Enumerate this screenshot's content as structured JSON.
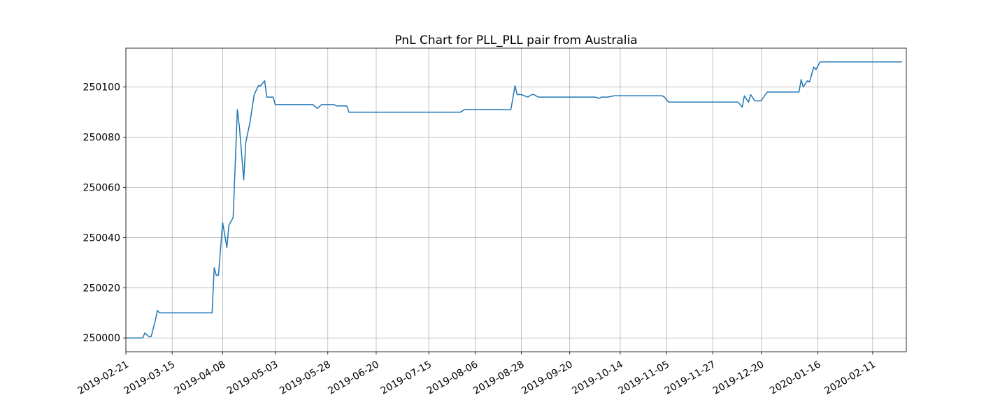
{
  "chart_data": {
    "type": "line",
    "title": "PnL Chart for PLL_PLL pair from Australia",
    "xlabel": "",
    "ylabel": "",
    "x_type": "date",
    "xlim": [
      "2019-02-21",
      "2020-02-27"
    ],
    "ylim": [
      249994.5,
      250115.5
    ],
    "x_ticks": [
      "2019-02-21",
      "2019-03-15",
      "2019-04-08",
      "2019-05-03",
      "2019-05-28",
      "2019-06-20",
      "2019-07-15",
      "2019-08-06",
      "2019-08-28",
      "2019-09-20",
      "2019-10-14",
      "2019-11-05",
      "2019-11-27",
      "2019-12-20",
      "2020-01-16",
      "2020-02-11"
    ],
    "y_ticks": [
      250000,
      250020,
      250040,
      250060,
      250080,
      250100
    ],
    "grid": true,
    "line_color": "#1f77b4",
    "series": [
      {
        "points": [
          [
            "2019-02-21",
            250000
          ],
          [
            "2019-03-01",
            250000
          ],
          [
            "2019-03-02",
            250002
          ],
          [
            "2019-03-04",
            250000.5
          ],
          [
            "2019-03-05",
            250000.5
          ],
          [
            "2019-03-07",
            250007
          ],
          [
            "2019-03-08",
            250011
          ],
          [
            "2019-03-09",
            250010
          ],
          [
            "2019-04-03",
            250010
          ],
          [
            "2019-04-04",
            250028
          ],
          [
            "2019-04-05",
            250025
          ],
          [
            "2019-04-06",
            250025
          ],
          [
            "2019-04-08",
            250046
          ],
          [
            "2019-04-10",
            250036
          ],
          [
            "2019-04-11",
            250045
          ],
          [
            "2019-04-13",
            250048
          ],
          [
            "2019-04-15",
            250091
          ],
          [
            "2019-04-16",
            250084
          ],
          [
            "2019-04-18",
            250063
          ],
          [
            "2019-04-19",
            250078
          ],
          [
            "2019-04-21",
            250086
          ],
          [
            "2019-04-23",
            250097
          ],
          [
            "2019-04-25",
            250100.5
          ],
          [
            "2019-04-26",
            250100.5
          ],
          [
            "2019-04-28",
            250102.5
          ],
          [
            "2019-04-29",
            250096
          ],
          [
            "2019-05-02",
            250096
          ],
          [
            "2019-05-03",
            250093
          ],
          [
            "2019-05-21",
            250093
          ],
          [
            "2019-05-23",
            250091.5
          ],
          [
            "2019-05-25",
            250093
          ],
          [
            "2019-05-31",
            250093
          ],
          [
            "2019-06-01",
            250092.5
          ],
          [
            "2019-06-06",
            250092.5
          ],
          [
            "2019-06-07",
            250090
          ],
          [
            "2019-07-30",
            250090
          ],
          [
            "2019-08-01",
            250091
          ],
          [
            "2019-08-23",
            250091
          ],
          [
            "2019-08-25",
            250100.5
          ],
          [
            "2019-08-26",
            250097
          ],
          [
            "2019-08-28",
            250097
          ],
          [
            "2019-08-31",
            250096
          ],
          [
            "2019-09-02",
            250097
          ],
          [
            "2019-09-03",
            250097
          ],
          [
            "2019-09-05",
            250096
          ],
          [
            "2019-10-02",
            250096
          ],
          [
            "2019-10-04",
            250095.5
          ],
          [
            "2019-10-05",
            250096
          ],
          [
            "2019-10-08",
            250096
          ],
          [
            "2019-10-11",
            250096.5
          ],
          [
            "2019-11-03",
            250096.5
          ],
          [
            "2019-11-04",
            250096
          ],
          [
            "2019-11-06",
            250094
          ],
          [
            "2019-12-09",
            250094
          ],
          [
            "2019-12-11",
            250092
          ],
          [
            "2019-12-12",
            250096.5
          ],
          [
            "2019-12-14",
            250094
          ],
          [
            "2019-12-15",
            250097
          ],
          [
            "2019-12-17",
            250094.5
          ],
          [
            "2019-12-20",
            250094.5
          ],
          [
            "2019-12-22",
            250097
          ],
          [
            "2019-12-23",
            250098
          ],
          [
            "2020-01-07",
            250098
          ],
          [
            "2020-01-08",
            250103
          ],
          [
            "2020-01-09",
            250100
          ],
          [
            "2020-01-11",
            250102.5
          ],
          [
            "2020-01-12",
            250102
          ],
          [
            "2020-01-14",
            250108
          ],
          [
            "2020-01-15",
            250107
          ],
          [
            "2020-01-17",
            250110
          ],
          [
            "2020-02-25",
            250110
          ]
        ]
      }
    ]
  }
}
